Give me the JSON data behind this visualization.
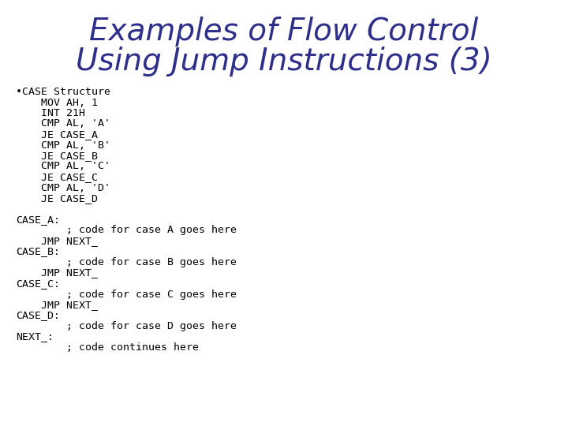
{
  "title_line1": "Examples of Flow Control",
  "title_line2": "Using Jump Instructions (3)",
  "title_color": "#2E2E8B",
  "title_fontsize": 28,
  "bg_color": "#FFFFFF",
  "code_color": "#000000",
  "code_fontsize": 9.5,
  "bullet_line": "•CASE Structure",
  "code_lines": [
    "    MOV AH, 1",
    "    INT 21H",
    "    CMP AL, 'A'",
    "    JE CASE_A",
    "    CMP AL, 'B'",
    "    JE CASE_B",
    "    CMP AL, 'C'",
    "    JE CASE_C",
    "    CMP AL, 'D'",
    "    JE CASE_D",
    "",
    "CASE_A:",
    "        ; code for case A goes here",
    "    JMP NEXT_",
    "CASE_B:",
    "        ; code for case B goes here",
    "    JMP NEXT_",
    "CASE_C:",
    "        ; code for case C goes here",
    "    JMP NEXT_",
    "CASE_D:",
    "        ; code for case D goes here",
    "NEXT_:",
    "        ; code continues here"
  ]
}
